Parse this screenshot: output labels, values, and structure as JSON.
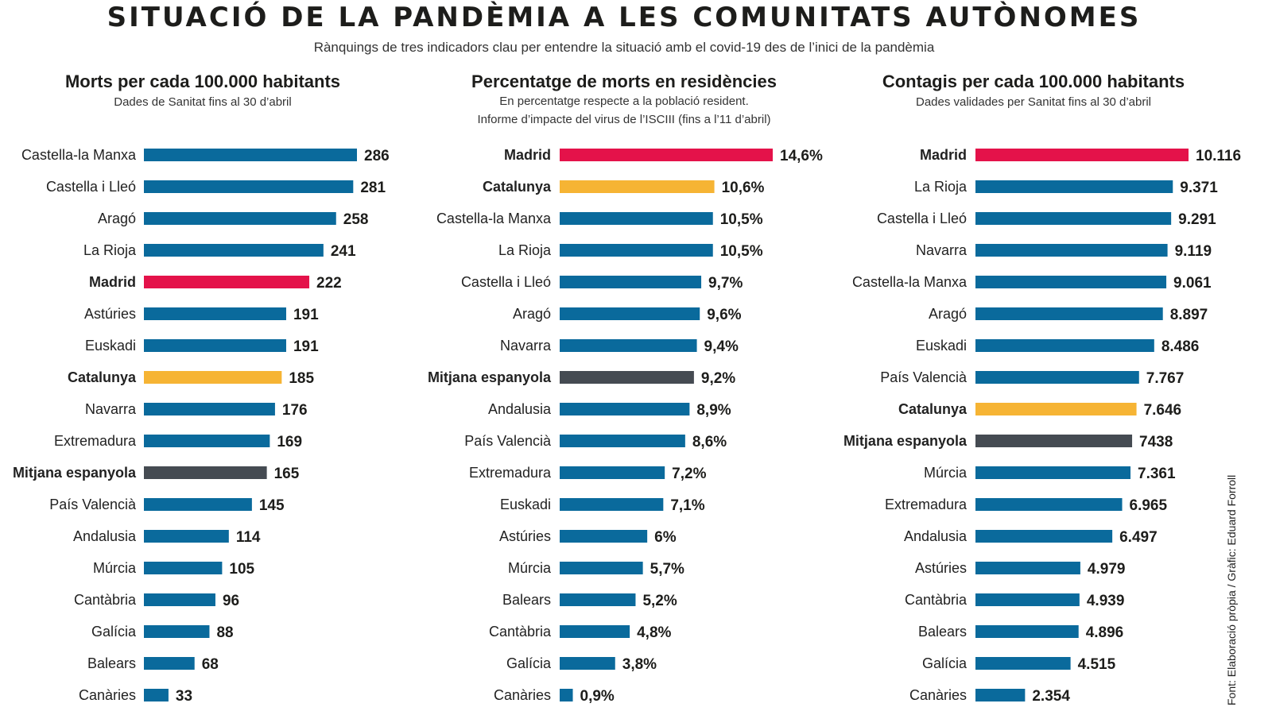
{
  "header": {
    "title": "SITUACIÓ DE LA PANDÈMIA A LES COMUNITATS AUTÒNOMES",
    "subtitle": "Rànquings de tres indicadors clau per entendre la situació amb el covid-19 des de l’inici de la pandèmia"
  },
  "credit": "Font: Elaboració pròpia / Gràfic: Eduard Forroll",
  "colors": {
    "default": "#0a6a9c",
    "madrid": "#e4124a",
    "catalunya": "#f6b434",
    "average": "#454b52"
  },
  "chart_data": [
    {
      "type": "bar",
      "title": "Morts per cada 100.000 habitants",
      "subtitle": [
        "Dades de Sanitat fins al 30 d’abril"
      ],
      "categories": [
        "Castella-la Manxa",
        "Castella i Lleó",
        "Aragó",
        "La Rioja",
        "Madrid",
        "Astúries",
        "Euskadi",
        "Catalunya",
        "Navarra",
        "Extremadura",
        "Mitjana espanyola",
        "País Valencià",
        "Andalusia",
        "Múrcia",
        "Cantàbria",
        "Galícia",
        "Balears",
        "Canàries"
      ],
      "values": [
        286,
        281,
        258,
        241,
        222,
        191,
        191,
        185,
        176,
        169,
        165,
        145,
        114,
        105,
        96,
        88,
        68,
        33
      ],
      "labels": [
        "286",
        "281",
        "258",
        "241",
        "222",
        "191",
        "191",
        "185",
        "176",
        "169",
        "165",
        "145",
        "114",
        "105",
        "96",
        "88",
        "68",
        "33"
      ],
      "xlim": [
        0,
        286
      ]
    },
    {
      "type": "bar",
      "title": "Percentatge de morts en residències",
      "subtitle": [
        "En percentatge respecte a la població resident.",
        "Informe d’impacte del virus de l’ISCIII (fins a l’11 d’abril)"
      ],
      "categories": [
        "Madrid",
        "Catalunya",
        "Castella-la Manxa",
        "La Rioja",
        "Castella i Lleó",
        "Aragó",
        "Navarra",
        "Mitjana espanyola",
        "Andalusia",
        "País Valencià",
        "Extremadura",
        "Euskadi",
        "Astúries",
        "Múrcia",
        "Balears",
        "Cantàbria",
        "Galícia",
        "Canàries"
      ],
      "values": [
        14.6,
        10.6,
        10.5,
        10.5,
        9.7,
        9.6,
        9.4,
        9.2,
        8.9,
        8.6,
        7.2,
        7.1,
        6,
        5.7,
        5.2,
        4.8,
        3.8,
        0.9
      ],
      "labels": [
        "14,6%",
        "10,6%",
        "10,5%",
        "10,5%",
        "9,7%",
        "9,6%",
        "9,4%",
        "9,2%",
        "8,9%",
        "8,6%",
        "7,2%",
        "7,1%",
        "6%",
        "5,7%",
        "5,2%",
        "4,8%",
        "3,8%",
        "0,9%"
      ],
      "xlim": [
        0,
        14.6
      ]
    },
    {
      "type": "bar",
      "title": "Contagis per cada 100.000 habitants",
      "subtitle": [
        "Dades validades per Sanitat fins al 30 d’abril"
      ],
      "categories": [
        "Madrid",
        "La Rioja",
        "Castella i Lleó",
        "Navarra",
        "Castella-la Manxa",
        "Aragó",
        "Euskadi",
        "País Valencià",
        "Catalunya",
        "Mitjana espanyola",
        "Múrcia",
        "Extremadura",
        "Andalusia",
        "Astúries",
        "Cantàbria",
        "Balears",
        "Galícia",
        "Canàries"
      ],
      "values": [
        10116,
        9371,
        9291,
        9119,
        9061,
        8897,
        8486,
        7767,
        7646,
        7438,
        7361,
        6965,
        6497,
        4979,
        4939,
        4896,
        4515,
        2354
      ],
      "labels": [
        "10.116",
        "9.371",
        "9.291",
        "9.119",
        "9.061",
        "8.897",
        "8.486",
        "7.767",
        "7.646",
        "7438",
        "7.361",
        "6.965",
        "6.497",
        "4.979",
        "4.939",
        "4.896",
        "4.515",
        "2.354"
      ],
      "xlim": [
        0,
        10116
      ]
    }
  ]
}
